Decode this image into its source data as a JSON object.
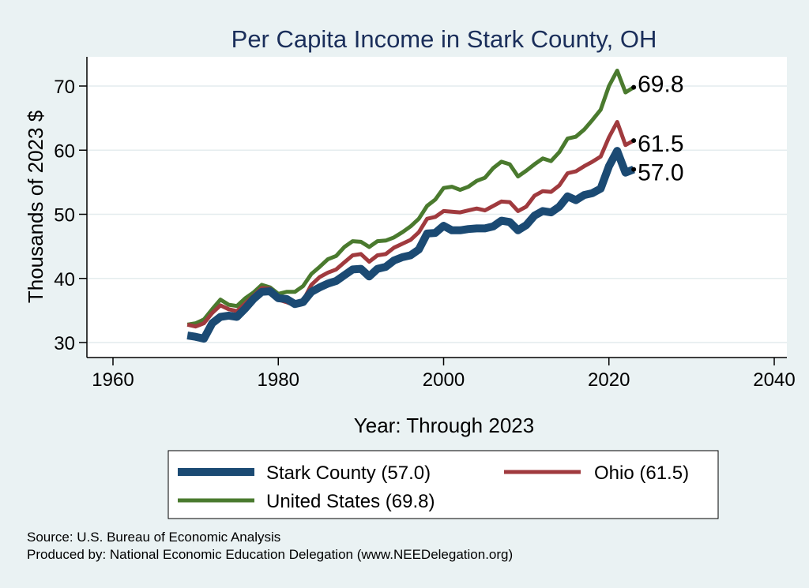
{
  "chart_data": {
    "type": "line",
    "title": "Per Capita Income in Stark County, OH",
    "xlabel": "Year: Through 2023",
    "ylabel": "Thousands of 2023 $",
    "xlim": [
      1960,
      2040
    ],
    "ylim": [
      28,
      75
    ],
    "x_ticks": [
      1960,
      1980,
      2000,
      2020,
      2040
    ],
    "y_ticks": [
      30,
      40,
      50,
      60,
      70
    ],
    "grid": "horizontal",
    "legend_position": "bottom",
    "x": [
      1969,
      1970,
      1971,
      1972,
      1973,
      1974,
      1975,
      1976,
      1977,
      1978,
      1979,
      1980,
      1981,
      1982,
      1983,
      1984,
      1985,
      1986,
      1987,
      1988,
      1989,
      1990,
      1991,
      1992,
      1993,
      1994,
      1995,
      1996,
      1997,
      1998,
      1999,
      2000,
      2001,
      2002,
      2003,
      2004,
      2005,
      2006,
      2007,
      2008,
      2009,
      2010,
      2011,
      2012,
      2013,
      2014,
      2015,
      2016,
      2017,
      2018,
      2019,
      2020,
      2021,
      2022,
      2023
    ],
    "series": [
      {
        "name": "Stark County (57.0)",
        "color": "#1b4a73",
        "values": [
          31.1,
          30.9,
          30.6,
          33.0,
          34.0,
          34.2,
          34.0,
          35.3,
          36.8,
          37.9,
          38.0,
          36.9,
          36.8,
          36.0,
          36.3,
          37.9,
          38.6,
          39.2,
          39.6,
          40.5,
          41.4,
          41.5,
          40.3,
          41.5,
          41.8,
          42.8,
          43.3,
          43.6,
          44.5,
          47.0,
          47.1,
          48.2,
          47.5,
          47.5,
          47.7,
          47.8,
          47.8,
          48.1,
          49.0,
          48.8,
          47.5,
          48.3,
          49.8,
          50.5,
          50.3,
          51.2,
          52.8,
          52.2,
          53.0,
          53.3,
          54.0,
          57.5,
          59.9,
          56.5,
          57.0
        ]
      },
      {
        "name": "Ohio (61.5)",
        "color": "#a03a3e",
        "values": [
          32.8,
          32.5,
          33.0,
          34.6,
          35.8,
          35.2,
          34.9,
          36.1,
          37.3,
          38.5,
          38.4,
          36.7,
          36.3,
          35.8,
          36.5,
          39.0,
          40.2,
          40.9,
          41.4,
          42.5,
          43.6,
          43.8,
          42.6,
          43.6,
          43.8,
          44.8,
          45.4,
          46.0,
          47.2,
          49.3,
          49.6,
          50.5,
          50.4,
          50.3,
          50.6,
          50.9,
          50.6,
          51.3,
          52.0,
          51.9,
          50.5,
          51.2,
          52.9,
          53.6,
          53.5,
          54.5,
          56.4,
          56.7,
          57.5,
          58.2,
          59.0,
          62.0,
          64.4,
          60.8,
          61.5
        ]
      },
      {
        "name": "United States (69.8)",
        "color": "#4a7a2e",
        "values": [
          32.8,
          33.0,
          33.6,
          35.2,
          36.7,
          35.9,
          35.7,
          36.9,
          37.8,
          39.0,
          38.6,
          37.6,
          37.9,
          37.9,
          38.8,
          40.7,
          41.8,
          43.0,
          43.5,
          44.9,
          45.8,
          45.7,
          44.9,
          45.8,
          45.9,
          46.4,
          47.2,
          48.1,
          49.3,
          51.3,
          52.3,
          54.1,
          54.3,
          53.8,
          54.3,
          55.2,
          55.7,
          57.2,
          58.2,
          57.8,
          55.9,
          56.8,
          57.8,
          58.7,
          58.3,
          59.7,
          61.8,
          62.1,
          63.2,
          64.7,
          66.3,
          70.0,
          72.4,
          69.0,
          69.8
        ]
      }
    ],
    "end_labels": [
      "57.0",
      "61.5",
      "69.8"
    ]
  },
  "source_line_1": "Source: U.S. Bureau of Economic Analysis",
  "source_line_2": "Produced by: National Economic Education Delegation (www.NEEDelegation.org)"
}
